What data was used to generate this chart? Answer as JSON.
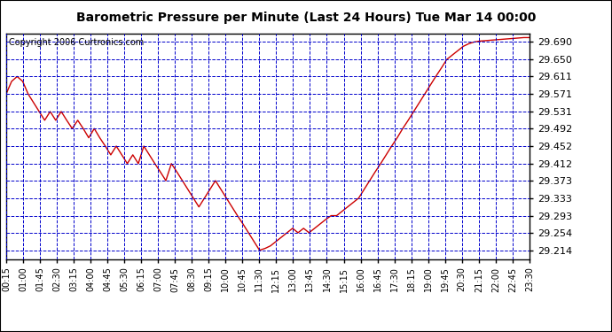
{
  "title": "Barometric Pressure per Minute (Last 24 Hours) Tue Mar 14 00:00",
  "copyright": "Copyright 2006 Curtronics.com",
  "line_color": "#cc0000",
  "background_color": "#ffffff",
  "plot_bg_color": "#ffffff",
  "grid_color": "#0000cc",
  "axis_color": "#000000",
  "yticks": [
    29.214,
    29.254,
    29.293,
    29.333,
    29.373,
    29.412,
    29.452,
    29.492,
    29.531,
    29.571,
    29.611,
    29.65,
    29.69
  ],
  "ylim": [
    29.194,
    29.71
  ],
  "xtick_labels": [
    "00:15",
    "01:00",
    "01:45",
    "02:30",
    "03:15",
    "04:00",
    "04:45",
    "05:30",
    "06:15",
    "07:00",
    "07:45",
    "08:30",
    "09:15",
    "10:00",
    "10:45",
    "11:30",
    "12:15",
    "13:00",
    "13:45",
    "14:30",
    "15:15",
    "16:00",
    "16:45",
    "17:30",
    "18:15",
    "19:00",
    "19:45",
    "20:30",
    "21:15",
    "22:00",
    "22:45",
    "23:30"
  ],
  "pressure_data": [
    29.571,
    29.6,
    29.611,
    29.6,
    29.571,
    29.551,
    29.531,
    29.511,
    29.531,
    29.511,
    29.531,
    29.511,
    29.492,
    29.511,
    29.492,
    29.471,
    29.492,
    29.471,
    29.452,
    29.432,
    29.452,
    29.432,
    29.412,
    29.432,
    29.412,
    29.452,
    29.432,
    29.412,
    29.393,
    29.373,
    29.412,
    29.393,
    29.373,
    29.353,
    29.333,
    29.313,
    29.333,
    29.353,
    29.373,
    29.353,
    29.333,
    29.313,
    29.293,
    29.274,
    29.254,
    29.234,
    29.214,
    29.218,
    29.224,
    29.234,
    29.244,
    29.254,
    29.264,
    29.254,
    29.264,
    29.254,
    29.264,
    29.274,
    29.284,
    29.293,
    29.293,
    29.303,
    29.313,
    29.323,
    29.333,
    29.353,
    29.373,
    29.393,
    29.412,
    29.432,
    29.452,
    29.471,
    29.492,
    29.511,
    29.531,
    29.551,
    29.571,
    29.591,
    29.611,
    29.63,
    29.65,
    29.66,
    29.67,
    29.68,
    29.686,
    29.69,
    29.692,
    29.693,
    29.694,
    29.695,
    29.696,
    29.697,
    29.698,
    29.699,
    29.7,
    29.7
  ]
}
